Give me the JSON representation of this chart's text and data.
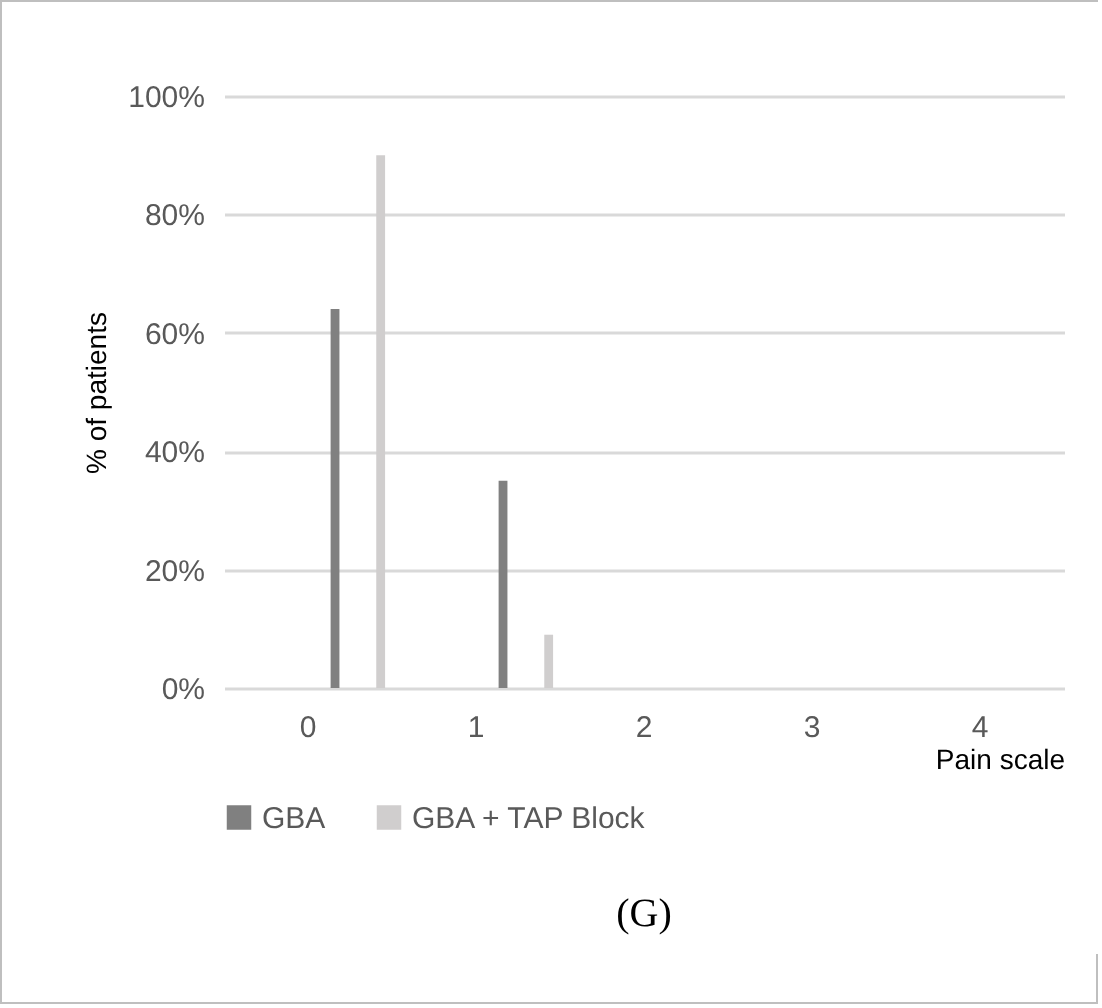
{
  "chart_data": {
    "type": "bar",
    "categories": [
      "0",
      "1",
      "2",
      "3",
      "4"
    ],
    "series": [
      {
        "name": "GBA",
        "color": "#808080",
        "values": [
          64,
          35,
          0,
          0,
          0
        ]
      },
      {
        "name": "GBA + TAP Block",
        "color": "#d0cece",
        "values": [
          90,
          9,
          0,
          0,
          0
        ]
      }
    ],
    "xlabel": "Pain scale",
    "ylabel": "% of patients",
    "ylim": [
      0,
      100
    ],
    "yticks": [
      {
        "value": 0,
        "label": "0%"
      },
      {
        "value": 20,
        "label": "20%"
      },
      {
        "value": 40,
        "label": "40%"
      },
      {
        "value": 60,
        "label": "60%"
      },
      {
        "value": 80,
        "label": "80%"
      },
      {
        "value": 100,
        "label": "100%"
      }
    ],
    "grid": "y",
    "legend": "bottom",
    "annotations": [
      "(G)"
    ]
  }
}
